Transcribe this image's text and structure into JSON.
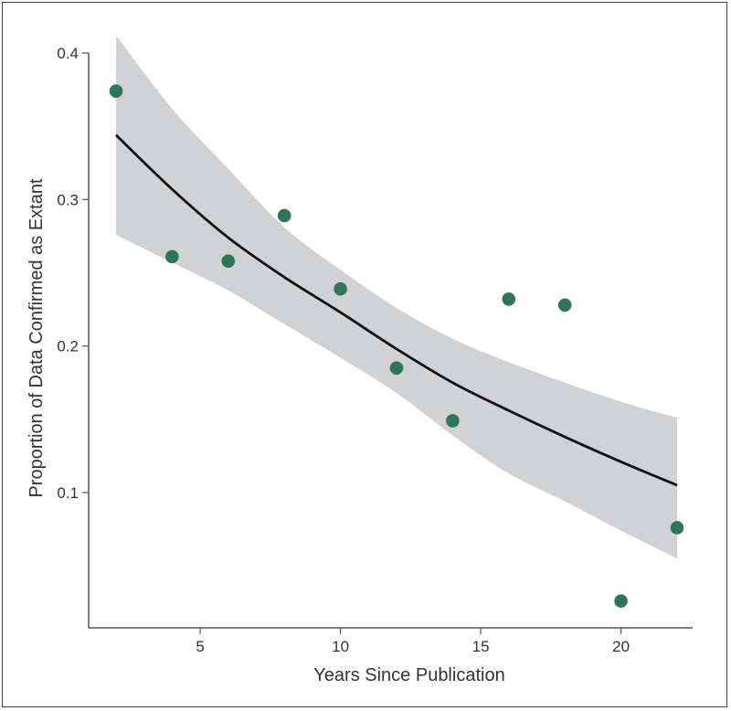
{
  "chart_data": {
    "type": "scatter",
    "title": "",
    "xlabel": "Years Since Publication",
    "ylabel": "Proportion of Data Confirmed as Extant",
    "xlim": [
      1.2,
      23
    ],
    "ylim": [
      0.007,
      0.4
    ],
    "x_ticks": [
      5,
      10,
      15,
      20
    ],
    "x_tick_labels": [
      "5",
      "10",
      "15",
      "20"
    ],
    "y_ticks": [
      0.1,
      0.2,
      0.3,
      0.4
    ],
    "y_tick_labels": [
      "0.1",
      "0.2",
      "0.3",
      "0.4"
    ],
    "grid": false,
    "legend": null,
    "series": [
      {
        "name": "Observed proportion",
        "kind": "points",
        "color": "#2e7559",
        "x": [
          2,
          4,
          6,
          8,
          10,
          12,
          14,
          16,
          18,
          20,
          22
        ],
        "y": [
          0.374,
          0.261,
          0.258,
          0.289,
          0.239,
          0.185,
          0.149,
          0.232,
          0.228,
          0.026,
          0.076
        ]
      },
      {
        "name": "Fitted trend",
        "kind": "line",
        "color": "#111111",
        "x": [
          2,
          4,
          6,
          8,
          10,
          12,
          14,
          16,
          18,
          20,
          22
        ],
        "y": [
          0.344,
          0.307,
          0.274,
          0.247,
          0.223,
          0.198,
          0.175,
          0.156,
          0.138,
          0.121,
          0.105
        ]
      },
      {
        "name": "95% confidence band",
        "kind": "band",
        "color": "#d1d2d4",
        "x": [
          2,
          4,
          6,
          8,
          10,
          12,
          14,
          16,
          18,
          20,
          22
        ],
        "lower": [
          0.276,
          0.257,
          0.238,
          0.215,
          0.192,
          0.168,
          0.139,
          0.113,
          0.094,
          0.074,
          0.055
        ],
        "upper": [
          0.412,
          0.362,
          0.321,
          0.281,
          0.252,
          0.226,
          0.205,
          0.189,
          0.175,
          0.162,
          0.151
        ]
      }
    ]
  }
}
